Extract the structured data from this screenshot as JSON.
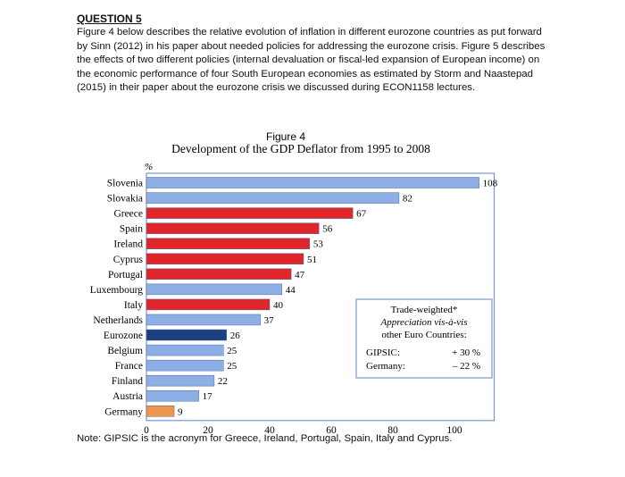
{
  "question": {
    "heading": "QUESTION 5",
    "body": "Figure 4 below describes the relative evolution of inflation in different eurozone countries as put forward by Sinn (2012) in his paper about needed policies for addressing the eurozone crisis. Figure 5 describes the effects of two different policies (internal devaluation or fiscal-led expansion of European income) on the economic performance of four South European economies as estimated by Storm and Naastepad (2015) in their paper about the eurozone crisis we discussed during ECON1158 lectures."
  },
  "chart_data": {
    "type": "bar",
    "orientation": "horizontal",
    "figure_label": "Figure 4",
    "title": "Development of the GDP Deflator from 1995 to 2008",
    "ylabel": "%",
    "xlim": [
      0,
      110
    ],
    "xticks": [
      0,
      20,
      40,
      60,
      80,
      100
    ],
    "categories": [
      "Slovenia",
      "Slovakia",
      "Greece",
      "Spain",
      "Ireland",
      "Cyprus",
      "Portugal",
      "Luxembourg",
      "Italy",
      "Netherlands",
      "Eurozone",
      "Belgium",
      "France",
      "Finland",
      "Austria",
      "Germany"
    ],
    "values": [
      108,
      82,
      67,
      56,
      53,
      51,
      47,
      44,
      40,
      37,
      26,
      25,
      25,
      22,
      17,
      9
    ],
    "colors": [
      "#8eaee6",
      "#8eaee6",
      "#e0262a",
      "#e0262a",
      "#e0262a",
      "#e0262a",
      "#e0262a",
      "#8eaee6",
      "#e0262a",
      "#8eaee6",
      "#1b3f80",
      "#8eaee6",
      "#8eaee6",
      "#8eaee6",
      "#8eaee6",
      "#f0964a"
    ],
    "legend_box": {
      "line1": "Trade-weighted*",
      "line2": "Appreciation vis-à-vis",
      "line3": "other Euro Countries:",
      "rows": [
        {
          "label": "GIPSIC:",
          "value": "+ 30 %"
        },
        {
          "label": "Germany:",
          "value": "– 22 %"
        }
      ]
    }
  },
  "note": "Note: GIPSIC is the acronym for Greece, Ireland, Portugal, Spain, Italy and Cyprus."
}
